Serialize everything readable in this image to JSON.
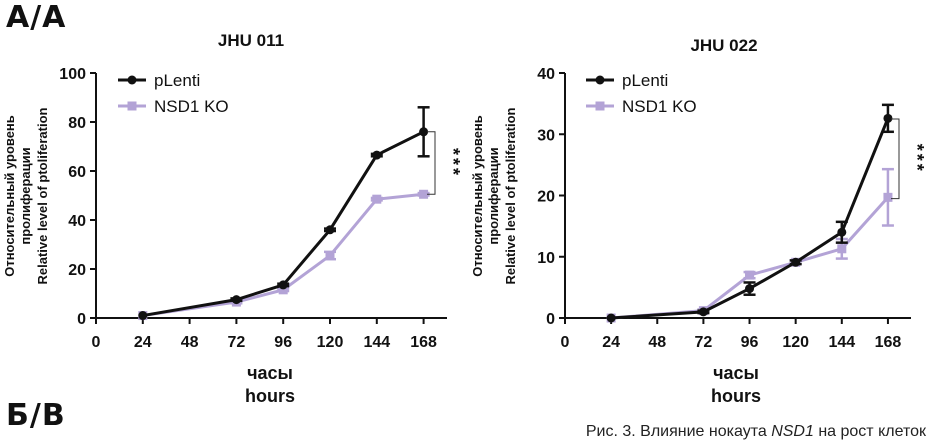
{
  "panels": {
    "top_label": "А/А",
    "bottom_label": "Б/В"
  },
  "caption": {
    "prefix": "Рис. 3. Влияние нокаута ",
    "gene": "NSD1",
    "suffix": " на рост клеток"
  },
  "colors": {
    "plenti": "#111111",
    "nsd1ko": "#b3a3d6",
    "axis": "#111111"
  },
  "chart_data": [
    {
      "type": "line",
      "title": "JHU 011",
      "xlabel": "часы",
      "xlabel2": "hours",
      "ylabel_lines": [
        "Относительный уровень",
        "пролиферации",
        "Relative level of ptoliferation"
      ],
      "xlim": [
        0,
        180
      ],
      "ylim": [
        0,
        100
      ],
      "xticks": [
        0,
        24,
        48,
        72,
        96,
        120,
        144,
        168
      ],
      "yticks": [
        0,
        20,
        40,
        60,
        80,
        100
      ],
      "legend_position": "top-left",
      "significance": "***",
      "significance_between": [
        76,
        50.5
      ],
      "series": [
        {
          "name": "pLenti",
          "x": [
            24,
            72,
            96,
            120,
            144,
            168
          ],
          "y": [
            1,
            7.5,
            13.5,
            36,
            66.5,
            76
          ],
          "err": [
            0,
            0.5,
            0.5,
            0.5,
            0.5,
            10
          ],
          "marker": "circle"
        },
        {
          "name": "NSD1 KO",
          "x": [
            24,
            72,
            96,
            120,
            144,
            168
          ],
          "y": [
            1,
            6.5,
            11.5,
            25.5,
            48.5,
            50.5
          ],
          "err": [
            0,
            0.5,
            0.5,
            1.5,
            0.5,
            0.5
          ],
          "marker": "square"
        }
      ]
    },
    {
      "type": "line",
      "title": "JHU 022",
      "xlabel": "часы",
      "xlabel2": "hours",
      "ylabel_lines": [
        "Относительный уровень",
        "пролиферации",
        "Relative level of ptoliferation"
      ],
      "xlim": [
        0,
        180
      ],
      "ylim": [
        0,
        40
      ],
      "xticks": [
        0,
        24,
        48,
        72,
        96,
        120,
        144,
        168
      ],
      "yticks": [
        0,
        10,
        20,
        30,
        40
      ],
      "legend_position": "top-left",
      "significance": "***",
      "significance_between": [
        32.5,
        19.5
      ],
      "series": [
        {
          "name": "pLenti",
          "x": [
            24,
            72,
            96,
            120,
            144,
            168
          ],
          "y": [
            0,
            1,
            4.8,
            9.1,
            14,
            32.6
          ],
          "err": [
            0,
            0.2,
            1.0,
            0.3,
            1.7,
            2.2
          ],
          "marker": "circle"
        },
        {
          "name": "NSD1 KO",
          "x": [
            24,
            72,
            96,
            120,
            144,
            168
          ],
          "y": [
            0,
            1.2,
            7,
            9.1,
            11.3,
            19.7
          ],
          "err": [
            0,
            0.2,
            0.5,
            0.3,
            1.6,
            4.6
          ],
          "marker": "square"
        }
      ]
    }
  ]
}
